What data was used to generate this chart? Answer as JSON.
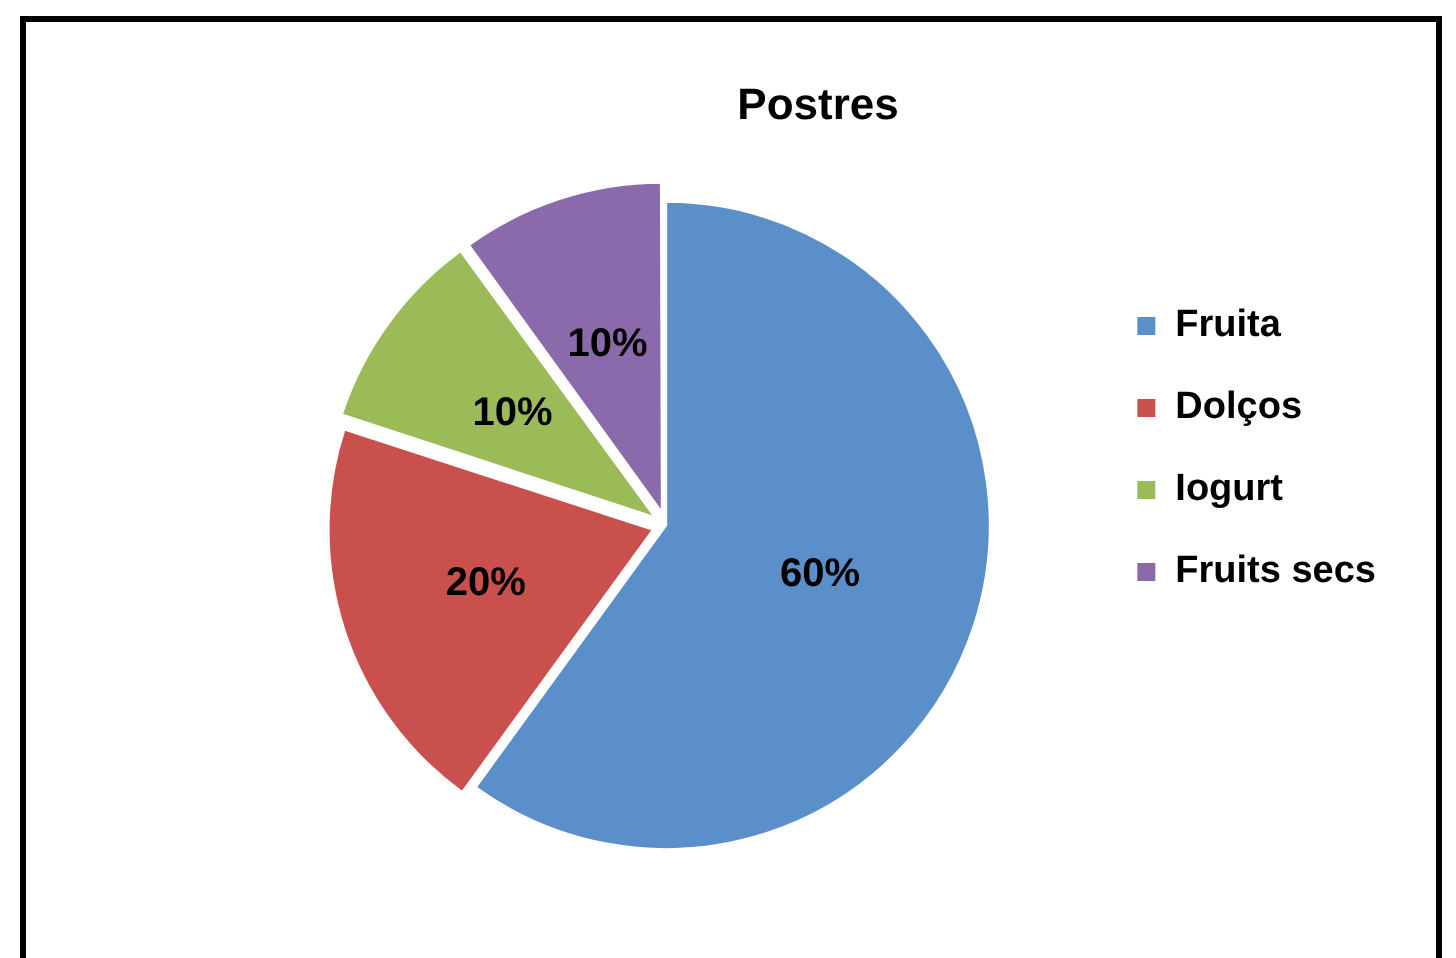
{
  "chart_data": {
    "type": "pie",
    "title": "Postres",
    "categories": [
      "Fruita",
      "Dolços",
      "Iogurt",
      "Fruits secs"
    ],
    "values": [
      60,
      20,
      10,
      10
    ],
    "colors": [
      "#5b8fc9",
      "#c9504d",
      "#9bbb59",
      "#8a6aab"
    ],
    "value_labels": [
      "60%",
      "20%",
      "10%",
      "10%"
    ],
    "legend": "right"
  }
}
